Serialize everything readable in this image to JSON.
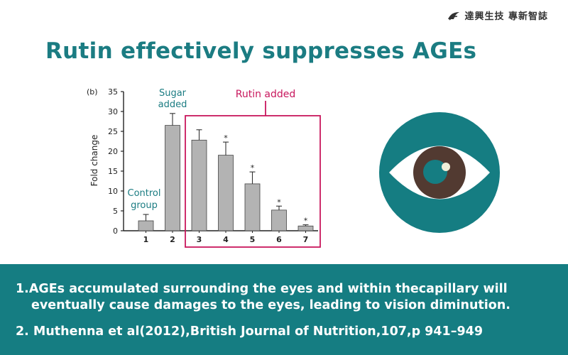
{
  "brand": {
    "text": "達興生技 專新智誌"
  },
  "title": "Rutin effectively suppresses AGEs",
  "chart_data": {
    "type": "bar",
    "panel_label": "(b)",
    "categories": [
      "1",
      "2",
      "3",
      "4",
      "5",
      "6",
      "7"
    ],
    "values": [
      2.5,
      26.5,
      22.8,
      19,
      11.8,
      5.2,
      1.2
    ],
    "errors": [
      1.6,
      3,
      2.6,
      3.3,
      3,
      1,
      0.3
    ],
    "significance": [
      "",
      "",
      "",
      "*",
      "*",
      "*",
      "*"
    ],
    "ylabel": "Fold change",
    "ylim": [
      0,
      35
    ],
    "yticks": [
      0,
      5,
      10,
      15,
      20,
      25,
      30,
      35
    ],
    "annotations": {
      "control": [
        "Control",
        "group"
      ],
      "sugar": [
        "Sugar",
        "added"
      ],
      "rutin": "Rutin added"
    },
    "colors": {
      "bar": "#b3b3b3",
      "annotation_teal": "#1b7c82",
      "rutin_box": "#c8175d"
    }
  },
  "references": {
    "ref1_line1": "1.AGEs accumulated surrounding the eyes and within thecapillary will",
    "ref1_line2": "eventually cause damages to the eyes, leading to vision diminution.",
    "ref2": "2. Muthenna et al(2012),British Journal of  Nutrition,107,p 941–949"
  },
  "colors": {
    "teal": "#157d82",
    "title": "#1b7c82"
  },
  "icons": {
    "eye": "eye-icon",
    "logo": "company-logo-icon"
  }
}
